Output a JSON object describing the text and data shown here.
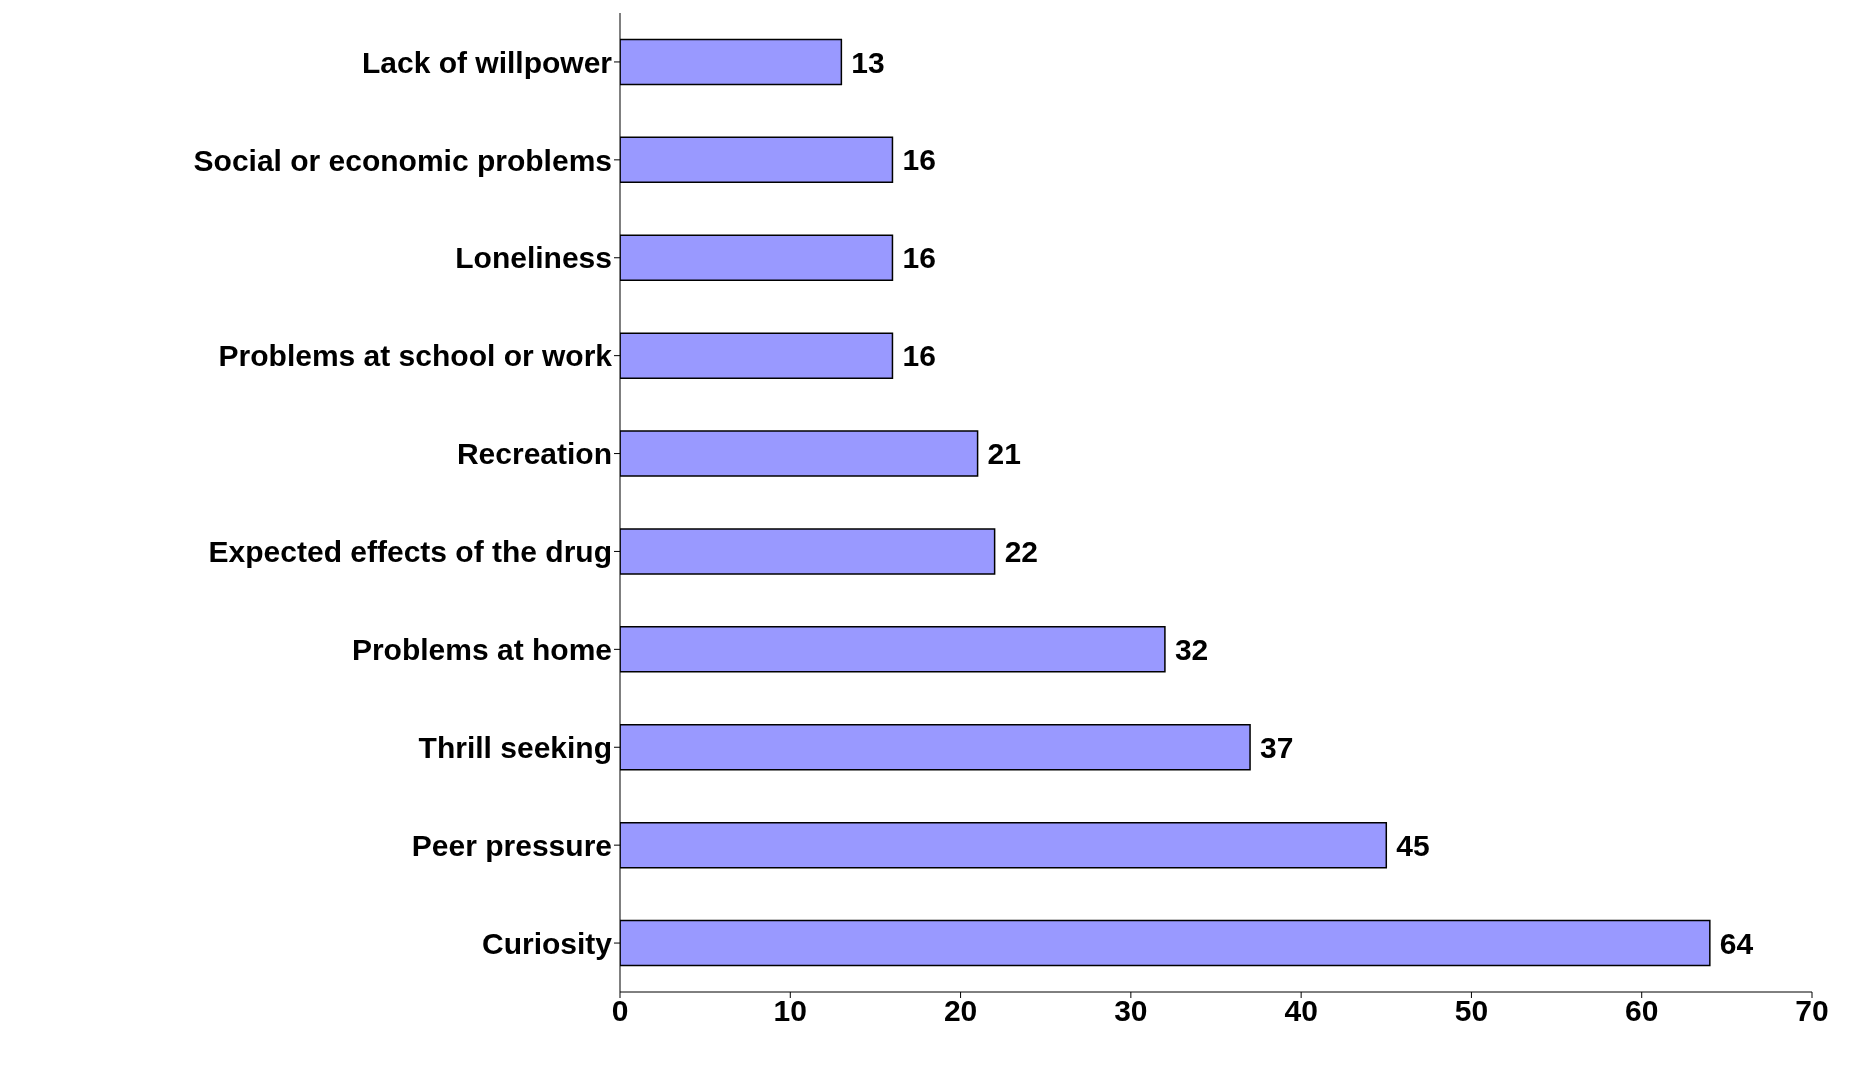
{
  "chart_data": {
    "type": "bar",
    "orientation": "horizontal",
    "categories": [
      "Lack of willpower",
      "Social or economic problems",
      "Loneliness",
      "Problems at school or work",
      "Recreation",
      "Expected effects of the drug",
      "Problems at home",
      "Thrill seeking",
      "Peer pressure",
      "Curiosity"
    ],
    "values": [
      13,
      16,
      16,
      16,
      21,
      22,
      32,
      37,
      45,
      64
    ],
    "color": "#9999ff",
    "xlim": [
      0,
      70
    ],
    "xticks": [
      0,
      10,
      20,
      30,
      40,
      50,
      60,
      70
    ],
    "data_labels": true
  }
}
